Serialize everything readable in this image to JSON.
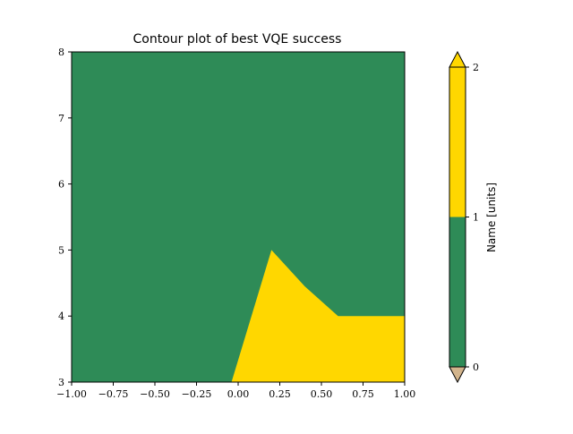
{
  "chart_data": {
    "type": "contour",
    "title": "Contour plot of best VQE success",
    "xlabel": "",
    "ylabel": "",
    "xlim": [
      -1.0,
      1.0
    ],
    "ylim": [
      3,
      8
    ],
    "x_ticks": [
      -1.0,
      -0.75,
      -0.5,
      -0.25,
      0.0,
      0.25,
      0.5,
      0.75,
      1.0
    ],
    "x_tick_labels": [
      "−1.00",
      "−0.75",
      "−0.50",
      "−0.25",
      "0.00",
      "0.25",
      "0.50",
      "0.75",
      "1.00"
    ],
    "y_ticks": [
      3,
      4,
      5,
      6,
      7,
      8
    ],
    "y_tick_labels": [
      "3",
      "4",
      "5",
      "6",
      "7",
      "8"
    ],
    "levels": [
      {
        "range": [
          0,
          1
        ],
        "color": "#2e8b57"
      },
      {
        "range": [
          1,
          2
        ],
        "color": "#ffd700"
      }
    ],
    "under_color": "#d2b48c",
    "over_color": "#ffd700",
    "background_level_color": "#2e8b57",
    "regions": [
      {
        "level": "1-2",
        "color": "#ffd700",
        "polygon": [
          [
            -0.04,
            3.0
          ],
          [
            0.2,
            5.0
          ],
          [
            0.4,
            4.45
          ],
          [
            0.6,
            4.0
          ],
          [
            1.0,
            4.0
          ],
          [
            1.0,
            3.0
          ]
        ]
      }
    ],
    "colorbar": {
      "label": "Name [units]",
      "ticks": [
        0,
        1,
        2
      ],
      "tick_labels": [
        "0",
        "1",
        "2"
      ],
      "extend": "both"
    },
    "grid": false
  }
}
